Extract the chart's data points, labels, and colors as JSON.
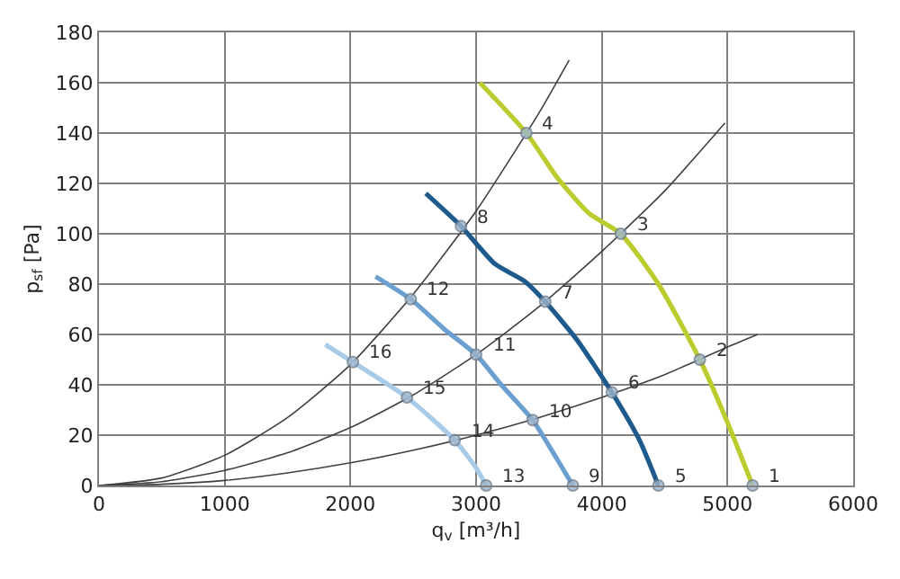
{
  "chart_data": {
    "type": "line",
    "xlabel": "q$_{v}$ [m³/h]",
    "ylabel": "p$_{sf}$ [Pa]",
    "xlim": [
      0,
      6000
    ],
    "xticks": [
      0,
      1000,
      2000,
      3000,
      4000,
      5000,
      6000
    ],
    "ylim": [
      0,
      180
    ],
    "yticks": [
      0,
      20,
      40,
      60,
      80,
      100,
      120,
      140,
      160,
      180
    ],
    "grid": true,
    "marker": "none",
    "line_style": "solid",
    "series": [
      {
        "color": "#404040",
        "x": [
          0,
          500,
          1000,
          1500,
          2000,
          2500,
          3000,
          3500,
          3740
        ],
        "values": [
          0,
          3,
          12,
          27,
          48,
          76,
          109,
          148,
          169
        ]
      },
      {
        "color": "#404040",
        "x": [
          0,
          500,
          1000,
          1500,
          2000,
          2500,
          3000,
          3500,
          4000,
          4500,
          4980
        ],
        "values": [
          0,
          1.5,
          6,
          13,
          23,
          36,
          52,
          71,
          93,
          117,
          144
        ]
      },
      {
        "color": "#404040",
        "x": [
          0,
          500,
          1000,
          1500,
          2000,
          2500,
          3000,
          3500,
          4000,
          4500,
          5000,
          5240
        ],
        "values": [
          0,
          0.5,
          2,
          5,
          9,
          14,
          20,
          27,
          35,
          44,
          55,
          60
        ]
      },
      {
        "color": "#bccb2e",
        "x": [
          3030,
          3400,
          3650,
          3900,
          4150,
          4450,
          4780,
          5000,
          5200
        ],
        "values": [
          160,
          140,
          122,
          108,
          100,
          80,
          50,
          25,
          0
        ]
      },
      {
        "color": "#1f5a8c",
        "x": [
          2600,
          2880,
          3150,
          3390,
          3550,
          3800,
          4080,
          4300,
          4450
        ],
        "values": [
          116,
          103,
          88,
          81,
          73,
          58,
          37,
          18,
          0
        ]
      },
      {
        "color": "#6a9fd0",
        "x": [
          2200,
          2480,
          2750,
          3000,
          3200,
          3450,
          3650,
          3770
        ],
        "values": [
          83,
          74,
          62,
          52,
          40,
          26,
          10,
          0
        ]
      },
      {
        "color": "#a8cbe8",
        "x": [
          1800,
          2020,
          2450,
          2830,
          3000,
          3080
        ],
        "values": [
          56,
          49,
          35,
          18,
          7,
          0
        ]
      },
      {
        "type": "scatter",
        "marker": "circle",
        "color": "#9fb6cc",
        "x": [
          5200,
          4780,
          4150,
          3400,
          4450,
          4080,
          3550,
          2880,
          3770,
          3450,
          3000,
          2480,
          3080,
          2830,
          2450,
          2020
        ],
        "values": [
          0,
          50,
          100,
          140,
          0,
          37,
          73,
          103,
          0,
          26,
          52,
          74,
          0,
          18,
          35,
          49
        ]
      }
    ],
    "annotations": [
      {
        "text": "1",
        "x": 5200,
        "y": 0
      },
      {
        "text": "2",
        "x": 4780,
        "y": 50
      },
      {
        "text": "3",
        "x": 4150,
        "y": 100
      },
      {
        "text": "4",
        "x": 3400,
        "y": 140
      },
      {
        "text": "5",
        "x": 4450,
        "y": 0
      },
      {
        "text": "6",
        "x": 4080,
        "y": 37
      },
      {
        "text": "7",
        "x": 3550,
        "y": 73
      },
      {
        "text": "8",
        "x": 2880,
        "y": 103
      },
      {
        "text": "9",
        "x": 3770,
        "y": 0
      },
      {
        "text": "10",
        "x": 3450,
        "y": 26
      },
      {
        "text": "11",
        "x": 3000,
        "y": 52
      },
      {
        "text": "12",
        "x": 2480,
        "y": 74
      },
      {
        "text": "13",
        "x": 3080,
        "y": 0
      },
      {
        "text": "14",
        "x": 2830,
        "y": 18
      },
      {
        "text": "15",
        "x": 2450,
        "y": 35
      },
      {
        "text": "16",
        "x": 2020,
        "y": 49
      }
    ]
  }
}
